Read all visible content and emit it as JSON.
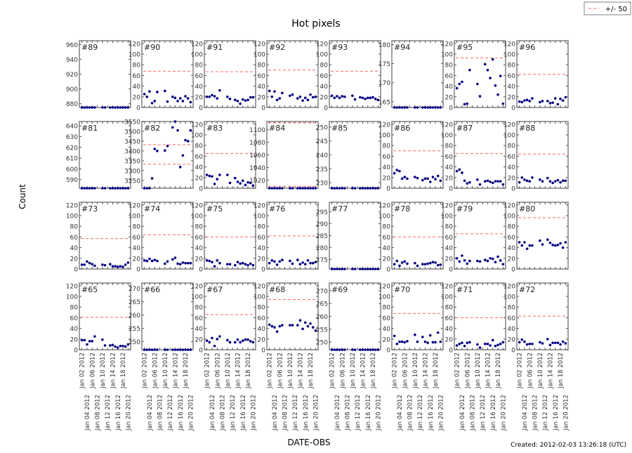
{
  "title": "Hot pixels",
  "ylabel": "Count",
  "xlabel": "DATE-OBS",
  "footer": "Created: 2012-02-03 13:26:18 (UTC)",
  "legend": {
    "label": "+/- 50",
    "placement": "top-right"
  },
  "colors": {
    "points": "#000080",
    "limit_line": "#ff6666",
    "axes": "#808080"
  },
  "chart_data": {
    "type": "scatter",
    "grid": false,
    "layout": "4x8 small multiples",
    "xlim": [
      "2012-01-01",
      "2012-01-21"
    ],
    "x_tick_labels": [
      "Jan 02 2012",
      "Jan 04 2012",
      "Jan 06 2012",
      "Jan 08 2012",
      "Jan 10 2012",
      "Jan 12 2012",
      "Jan 14 2012",
      "Jan 16 2012",
      "Jan 18 2012",
      "Jan 20 2012"
    ],
    "x": [
      "2012-01-02",
      "2012-01-03",
      "2012-01-04",
      "2012-01-05",
      "2012-01-06",
      "2012-01-07",
      "2012-01-10",
      "2012-01-11",
      "2012-01-13",
      "2012-01-14",
      "2012-01-15",
      "2012-01-16",
      "2012-01-17",
      "2012-01-18",
      "2012-01-19",
      "2012-01-20"
    ],
    "panels": [
      {
        "label": "#89",
        "ylim": [
          875,
          965
        ],
        "yticks": [
          880,
          900,
          920,
          940,
          960
        ],
        "limits": [],
        "values": [
          875,
          875,
          875,
          875,
          875,
          875,
          875,
          875,
          875,
          875,
          875,
          875,
          875,
          875,
          875,
          875
        ]
      },
      {
        "label": "#90",
        "ylim": [
          0,
          125
        ],
        "yticks": [
          0,
          20,
          40,
          60,
          80,
          100,
          120
        ],
        "limits": [
          68
        ],
        "values": [
          25,
          20,
          30,
          8,
          12,
          29,
          31,
          11,
          20,
          18,
          12,
          17,
          12,
          21,
          17,
          10
        ]
      },
      {
        "label": "#91",
        "ylim": [
          0,
          125
        ],
        "yticks": [
          0,
          20,
          40,
          60,
          80,
          100,
          120
        ],
        "limits": [
          67
        ],
        "values": [
          20,
          20,
          23,
          21,
          17,
          32,
          20,
          16,
          14,
          12,
          7,
          15,
          13,
          14,
          19,
          19
        ]
      },
      {
        "label": "#92",
        "ylim": [
          0,
          125
        ],
        "yticks": [
          0,
          20,
          40,
          60,
          80,
          100,
          120
        ],
        "limits": [
          70
        ],
        "values": [
          31,
          20,
          30,
          14,
          17,
          27,
          22,
          24,
          17,
          20,
          13,
          18,
          14,
          24,
          19,
          20
        ]
      },
      {
        "label": "#93",
        "ylim": [
          0,
          125
        ],
        "yticks": [
          0,
          20,
          40,
          60,
          80,
          100,
          120
        ],
        "limits": [
          68
        ],
        "values": [
          22,
          18,
          21,
          18,
          21,
          20,
          22,
          15,
          19,
          18,
          16,
          18,
          18,
          19,
          16,
          14
        ]
      },
      {
        "label": "#94",
        "ylim": [
          163.5,
          181
        ],
        "yticks": [
          165,
          170,
          175,
          180
        ],
        "limits": [],
        "values": [
          163.5,
          163.5,
          163.5,
          163.5,
          163.5,
          163.5,
          163.5,
          163.5,
          163.5,
          163.5,
          163.5,
          163.5,
          163.5,
          163.5,
          163.5,
          163.5
        ]
      },
      {
        "label": "#95",
        "ylim": [
          0,
          125
        ],
        "yticks": [
          0,
          20,
          40,
          60,
          80,
          100,
          120
        ],
        "limits": [
          93
        ],
        "values": [
          36,
          44,
          48,
          6,
          7,
          70,
          44,
          21,
          81,
          70,
          55,
          90,
          41,
          24,
          59,
          7
        ]
      },
      {
        "label": "#96",
        "ylim": [
          0,
          125
        ],
        "yticks": [
          0,
          20,
          40,
          60,
          80,
          100,
          120
        ],
        "limits": [
          62
        ],
        "values": [
          11,
          10,
          13,
          14,
          12,
          17,
          10,
          12,
          12,
          8,
          9,
          17,
          6,
          16,
          13,
          19
        ]
      },
      {
        "label": "#81",
        "ylim": [
          582,
          644
        ],
        "yticks": [
          590,
          600,
          610,
          620,
          630,
          640
        ],
        "limits": [],
        "values": [
          582,
          582,
          582,
          582,
          582,
          582,
          582,
          582,
          582,
          582,
          582,
          582,
          582,
          582,
          582,
          582
        ]
      },
      {
        "label": "#82",
        "ylim": [
          3210,
          3550
        ],
        "yticks": [
          3250,
          3300,
          3350,
          3400,
          3450,
          3500,
          3550
        ],
        "limits": [
          3332,
          3432
        ],
        "values": [
          3210,
          3210,
          3210,
          3260,
          3410,
          3400,
          3402,
          3425,
          3520,
          3550,
          3505,
          3318,
          3377,
          3455,
          3450,
          3505
        ]
      },
      {
        "label": "#83",
        "ylim": [
          0,
          125
        ],
        "yticks": [
          0,
          20,
          40,
          60,
          80,
          100,
          120
        ],
        "limits": [
          65
        ],
        "values": [
          25,
          23,
          22,
          8,
          17,
          25,
          25,
          10,
          19,
          12,
          9,
          14,
          6,
          11,
          10,
          5
        ]
      },
      {
        "label": "#84",
        "ylim": [
          1007,
          1113
        ],
        "yticks": [
          1020,
          1040,
          1060,
          1080,
          1100
        ],
        "limits": [
          1010,
          1111
        ],
        "values": [
          1007,
          1007,
          1007,
          1007,
          1007,
          1007,
          1007,
          1007,
          1007,
          1007,
          1007,
          1007,
          1007,
          1007,
          1007,
          1007
        ]
      },
      {
        "label": "#85",
        "ylim": [
          228,
          252
        ],
        "yticks": [
          230,
          235,
          240,
          245,
          250
        ],
        "limits": [],
        "values": [
          228,
          228,
          228,
          228,
          228,
          228,
          228,
          228,
          228,
          228,
          228,
          228,
          228,
          228,
          228,
          228
        ]
      },
      {
        "label": "#86",
        "ylim": [
          0,
          125
        ],
        "yticks": [
          0,
          20,
          40,
          60,
          80,
          100,
          120
        ],
        "limits": [
          70
        ],
        "values": [
          28,
          34,
          32,
          18,
          21,
          18,
          21,
          19,
          15,
          18,
          18,
          12,
          21,
          17,
          23,
          14
        ]
      },
      {
        "label": "#87",
        "ylim": [
          0,
          125
        ],
        "yticks": [
          0,
          20,
          40,
          60,
          80,
          100,
          120
        ],
        "limits": [
          65
        ],
        "values": [
          32,
          35,
          29,
          14,
          9,
          11,
          16,
          7,
          13,
          14,
          12,
          10,
          13,
          13,
          13,
          7
        ]
      },
      {
        "label": "#88",
        "ylim": [
          0,
          125
        ],
        "yticks": [
          0,
          20,
          40,
          60,
          80,
          100,
          120
        ],
        "limits": [
          64
        ],
        "values": [
          11,
          20,
          16,
          14,
          13,
          20,
          16,
          13,
          19,
          13,
          10,
          13,
          15,
          11,
          14,
          14
        ]
      },
      {
        "label": "#73",
        "ylim": [
          0,
          125
        ],
        "yticks": [
          0,
          20,
          40,
          60,
          80,
          100,
          120
        ],
        "limits": [
          57
        ],
        "values": [
          8,
          8,
          14,
          11,
          9,
          6,
          8,
          7,
          9,
          5,
          5,
          4,
          5,
          4,
          8,
          12
        ]
      },
      {
        "label": "#74",
        "ylim": [
          0,
          125
        ],
        "yticks": [
          0,
          20,
          40,
          60,
          80,
          100,
          120
        ],
        "limits": [
          64
        ],
        "values": [
          16,
          15,
          19,
          15,
          17,
          15,
          10,
          14,
          18,
          21,
          10,
          9,
          12,
          11,
          11,
          11
        ]
      },
      {
        "label": "#75",
        "ylim": [
          0,
          125
        ],
        "yticks": [
          0,
          20,
          40,
          60,
          80,
          100,
          120
        ],
        "limits": [
          60
        ],
        "values": [
          16,
          15,
          13,
          5,
          16,
          11,
          9,
          9,
          7,
          13,
          10,
          11,
          9,
          7,
          10,
          7
        ]
      },
      {
        "label": "#76",
        "ylim": [
          0,
          125
        ],
        "yticks": [
          0,
          20,
          40,
          60,
          80,
          100,
          120
        ],
        "limits": [
          62
        ],
        "values": [
          11,
          16,
          14,
          8,
          14,
          17,
          15,
          10,
          17,
          9,
          12,
          9,
          16,
          11,
          11,
          13
        ]
      },
      {
        "label": "#77",
        "ylim": [
          271,
          299
        ],
        "yticks": [
          275,
          280,
          285,
          290,
          295
        ],
        "limits": [],
        "values": [
          271,
          271,
          271,
          271,
          271,
          271,
          271,
          271,
          271,
          271,
          271,
          271,
          271,
          271,
          271,
          271
        ]
      },
      {
        "label": "#78",
        "ylim": [
          0,
          125
        ],
        "yticks": [
          0,
          20,
          40,
          60,
          80,
          100,
          120
        ],
        "limits": [
          60
        ],
        "values": [
          9,
          15,
          6,
          12,
          14,
          10,
          11,
          6,
          9,
          9,
          10,
          11,
          13,
          12,
          7,
          8
        ]
      },
      {
        "label": "#79",
        "ylim": [
          0,
          125
        ],
        "yticks": [
          0,
          20,
          40,
          60,
          80,
          100,
          120
        ],
        "limits": [
          66
        ],
        "values": [
          20,
          14,
          25,
          16,
          10,
          15,
          15,
          14,
          17,
          15,
          20,
          19,
          13,
          23,
          16,
          9
        ]
      },
      {
        "label": "#80",
        "ylim": [
          0,
          125
        ],
        "yticks": [
          0,
          20,
          40,
          60,
          80,
          100,
          120
        ],
        "limits": [
          96
        ],
        "values": [
          50,
          44,
          50,
          38,
          44,
          44,
          53,
          46,
          55,
          49,
          45,
          44,
          45,
          48,
          40,
          50
        ]
      },
      {
        "label": "#65",
        "ylim": [
          0,
          125
        ],
        "yticks": [
          0,
          20,
          40,
          60,
          80,
          100,
          120
        ],
        "limits": [
          61
        ],
        "values": [
          18,
          18,
          10,
          16,
          16,
          25,
          19,
          8,
          8,
          9,
          6,
          4,
          7,
          7,
          6,
          10
        ]
      },
      {
        "label": "#66",
        "ylim": [
          247,
          272
        ],
        "yticks": [
          250,
          255,
          260,
          265,
          270
        ],
        "limits": [],
        "values": [
          247,
          247,
          247,
          247,
          247,
          247,
          247,
          247,
          247,
          247,
          247,
          247,
          247,
          247,
          247,
          247
        ]
      },
      {
        "label": "#67",
        "ylim": [
          0,
          125
        ],
        "yticks": [
          0,
          20,
          40,
          60,
          80,
          100,
          120
        ],
        "limits": [
          66
        ],
        "values": [
          17,
          14,
          22,
          7,
          20,
          25,
          18,
          14,
          14,
          19,
          14,
          17,
          19,
          19,
          16,
          14
        ]
      },
      {
        "label": "#68",
        "ylim": [
          0,
          125
        ],
        "yticks": [
          0,
          20,
          40,
          60,
          80,
          100,
          120
        ],
        "limits": [
          94
        ],
        "values": [
          47,
          44,
          42,
          34,
          44,
          46,
          46,
          46,
          46,
          55,
          39,
          51,
          44,
          49,
          42,
          36
        ]
      },
      {
        "label": "#69",
        "ylim": [
          247,
          273
        ],
        "yticks": [
          250,
          255,
          260,
          265,
          270
        ],
        "limits": [],
        "values": [
          247,
          247,
          247,
          247,
          247,
          247,
          247,
          247,
          247,
          247,
          247,
          247,
          247,
          247,
          247,
          247
        ]
      },
      {
        "label": "#70",
        "ylim": [
          0,
          125
        ],
        "yticks": [
          0,
          20,
          40,
          60,
          80,
          100,
          120
        ],
        "limits": [
          68
        ],
        "values": [
          26,
          11,
          15,
          15,
          14,
          16,
          28,
          15,
          24,
          15,
          13,
          27,
          14,
          14,
          32,
          15
        ]
      },
      {
        "label": "#71",
        "ylim": [
          0,
          125
        ],
        "yticks": [
          0,
          20,
          40,
          60,
          80,
          100,
          120
        ],
        "limits": [
          60
        ],
        "values": [
          8,
          11,
          13,
          7,
          13,
          14,
          10,
          4,
          11,
          11,
          8,
          18,
          7,
          9,
          11,
          14
        ]
      },
      {
        "label": "#72",
        "ylim": [
          0,
          125
        ],
        "yticks": [
          0,
          20,
          40,
          60,
          80,
          100,
          120
        ],
        "limits": [
          63
        ],
        "values": [
          14,
          19,
          15,
          10,
          11,
          11,
          14,
          12,
          20,
          9,
          13,
          13,
          13,
          10,
          15,
          12
        ]
      }
    ]
  }
}
